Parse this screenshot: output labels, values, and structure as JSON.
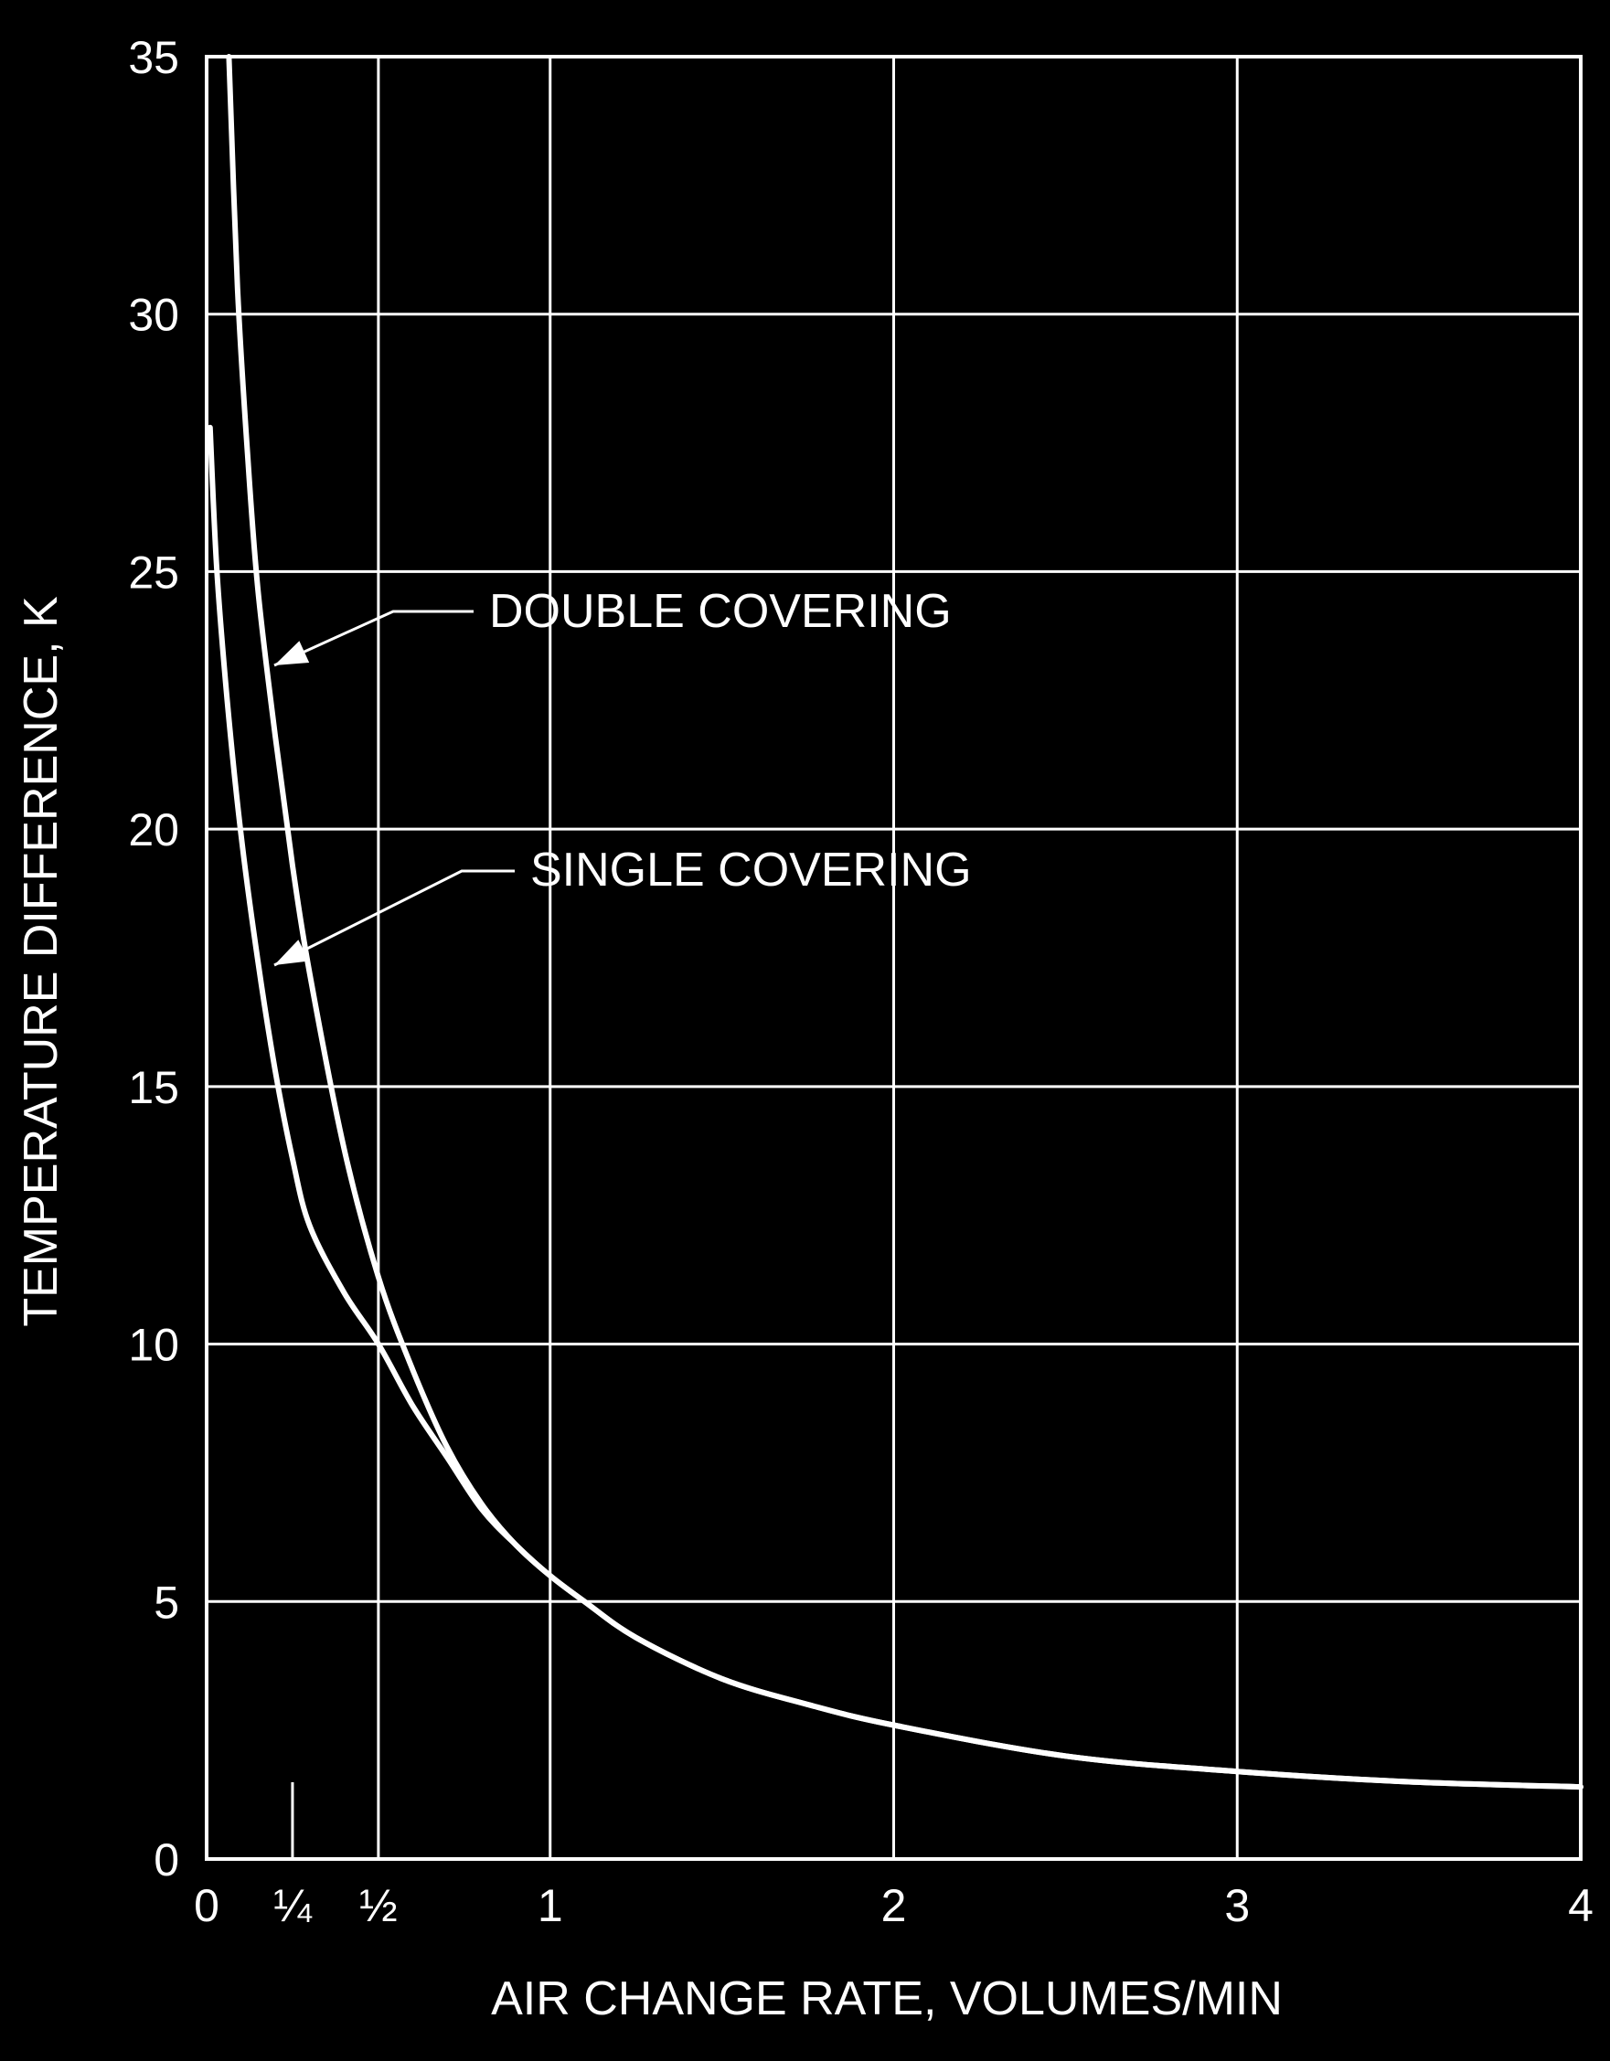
{
  "chart_data": {
    "type": "line",
    "title": "",
    "xlabel": "AIR CHANGE RATE, VOLUMES/MIN",
    "ylabel": "TEMPERATURE DIFFERENCE, K",
    "xlim": [
      0,
      4
    ],
    "ylim": [
      0,
      35
    ],
    "grid": true,
    "x_ticks": [
      {
        "value": 0,
        "label": "0"
      },
      {
        "value": 0.25,
        "label": "¼"
      },
      {
        "value": 0.5,
        "label": "½"
      },
      {
        "value": 1,
        "label": "1"
      },
      {
        "value": 2,
        "label": "2"
      },
      {
        "value": 3,
        "label": "3"
      },
      {
        "value": 4,
        "label": "4"
      }
    ],
    "y_ticks": [
      {
        "value": 0,
        "label": "0"
      },
      {
        "value": 5,
        "label": "5"
      },
      {
        "value": 10,
        "label": "10"
      },
      {
        "value": 15,
        "label": "15"
      },
      {
        "value": 20,
        "label": "20"
      },
      {
        "value": 25,
        "label": "25"
      },
      {
        "value": 30,
        "label": "30"
      },
      {
        "value": 35,
        "label": "35"
      }
    ],
    "series": [
      {
        "name": "DOUBLE COVERING",
        "x": [
          0.065,
          0.09,
          0.12,
          0.15,
          0.2,
          0.25,
          0.3,
          0.4,
          0.5,
          0.6,
          0.7,
          0.8,
          0.9,
          1.0,
          1.1,
          1.25,
          1.5,
          1.75,
          2.0,
          2.5,
          3.0,
          3.5,
          4.0
        ],
        "y": [
          35,
          30.5,
          27.2,
          24.6,
          21.8,
          19.3,
          17.2,
          13.8,
          11.3,
          9.5,
          8.0,
          6.9,
          6.1,
          5.5,
          5.0,
          4.3,
          3.5,
          3.0,
          2.6,
          2.0,
          1.7,
          1.5,
          1.4
        ]
      },
      {
        "name": "SINGLE COVERING",
        "x": [
          0.01,
          0.03,
          0.06,
          0.1,
          0.15,
          0.2,
          0.25,
          0.3,
          0.4,
          0.5,
          0.6,
          0.7,
          0.8,
          0.9,
          1.0,
          1.1,
          1.25,
          1.5,
          1.75,
          2.0,
          2.5,
          3.0,
          3.5,
          4.0
        ],
        "y": [
          27.8,
          25.0,
          22.5,
          19.9,
          17.4,
          15.3,
          13.6,
          12.3,
          11.0,
          10.0,
          8.8,
          7.8,
          6.8,
          6.1,
          5.5,
          5.0,
          4.3,
          3.5,
          3.0,
          2.6,
          2.0,
          1.7,
          1.5,
          1.4
        ]
      }
    ],
    "annotations": [
      {
        "text": "DOUBLE COVERING",
        "target_series": 0
      },
      {
        "text": "SINGLE COVERING",
        "target_series": 1
      }
    ]
  }
}
